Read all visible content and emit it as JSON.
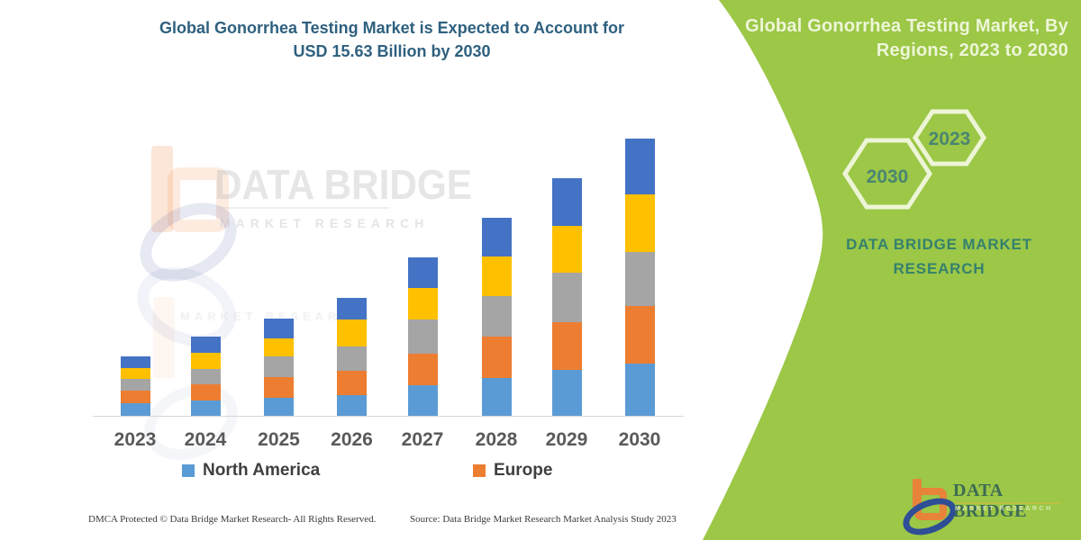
{
  "left_header": {
    "title_line1": "Global Gonorrhea Testing Market is Expected to Account for",
    "title_line2": "USD 15.63 Billion by 2030"
  },
  "panel": {
    "title_line1": "Global Gonorrhea Testing Market, By",
    "title_line2": "Regions, 2023 to 2030",
    "hexagon_large_year": "2030",
    "hexagon_small_year": "2023",
    "brand_line1": "DATA BRIDGE MARKET",
    "brand_line2": "RESEARCH",
    "logo_name": "DATA BRIDGE",
    "logo_sub": "MARKET RESEARCH",
    "background_color": "#9cc747",
    "hexagon_outline_color": "#edf5d6",
    "hexagon_year_color": "#4a8571"
  },
  "watermark": {
    "brand": "DATA BRIDGE",
    "sub": "MARKET RESEARCH",
    "sub_reflection": "MARKET RESEARCH"
  },
  "chart_data": {
    "type": "bar",
    "stacked": true,
    "title": "Global Gonorrhea Testing Market is Expected to Account for USD 15.63 Billion by 2030",
    "unit": "USD Billion",
    "categories": [
      "2023",
      "2024",
      "2025",
      "2026",
      "2027",
      "2028",
      "2029",
      "2030"
    ],
    "series": [
      {
        "name": "North America",
        "color": "#5b9bd5",
        "values": [
          0.71,
          0.86,
          1.01,
          1.17,
          1.73,
          2.13,
          2.59,
          2.94
        ]
      },
      {
        "name": "Europe",
        "color": "#ed7d31",
        "values": [
          0.71,
          0.91,
          1.17,
          1.37,
          1.78,
          2.33,
          2.69,
          3.25
        ]
      },
      {
        "name": "(unlabeled gray segment)",
        "color": "#a5a5a5",
        "values": [
          0.66,
          0.86,
          1.17,
          1.37,
          1.93,
          2.28,
          2.79,
          3.04
        ]
      },
      {
        "name": "(unlabeled yellow segment)",
        "color": "#ffc000",
        "values": [
          0.61,
          0.91,
          1.01,
          1.52,
          1.78,
          2.23,
          2.64,
          3.25
        ]
      },
      {
        "name": "(unlabeled dark-blue segment)",
        "color": "#4472c4",
        "values": [
          0.66,
          0.91,
          1.12,
          1.22,
          1.73,
          2.18,
          2.69,
          3.15
        ]
      }
    ],
    "totals_estimated": [
      3.35,
      4.45,
      5.48,
      6.65,
      8.95,
      11.15,
      13.4,
      15.63
    ],
    "ylim": [
      0,
      16
    ],
    "grid": false,
    "legend_position": "bottom",
    "legend_entries": [
      "North America",
      "Europe"
    ]
  },
  "legend": [
    {
      "label": "North America",
      "color": "#5b9bd5"
    },
    {
      "label": "Europe",
      "color": "#ed7d31"
    }
  ],
  "footer": {
    "left": "DMCA Protected © Data Bridge Market Research-  All Rights Reserved.",
    "right": "Source:  Data Bridge Market Research  Market Analysis Study 2023"
  }
}
